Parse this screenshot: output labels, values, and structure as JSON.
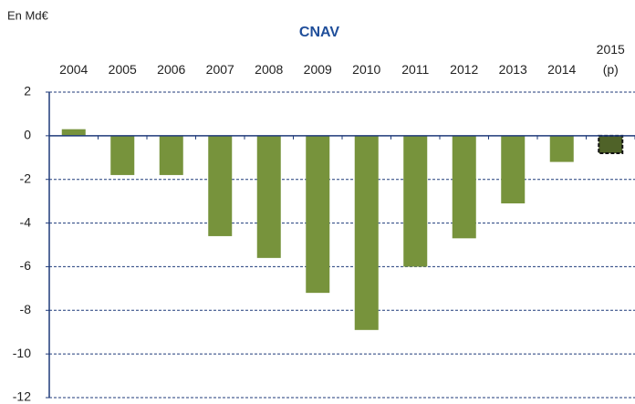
{
  "chart_data": {
    "type": "bar",
    "title": "CNAV",
    "unit_label": "En Md€",
    "categories": [
      "2004",
      "2005",
      "2006",
      "2007",
      "2008",
      "2009",
      "2010",
      "2011",
      "2012",
      "2013",
      "2014",
      "2015\n(p)"
    ],
    "values": [
      0.3,
      -1.8,
      -1.8,
      -4.6,
      -5.6,
      -7.2,
      -8.9,
      -6.0,
      -4.7,
      -3.1,
      -1.2,
      -0.8
    ],
    "colors": [
      "#77933c",
      "#77933c",
      "#77933c",
      "#77933c",
      "#77933c",
      "#77933c",
      "#77933c",
      "#77933c",
      "#77933c",
      "#77933c",
      "#77933c",
      "#4f6228"
    ],
    "ylim": [
      -12,
      2
    ],
    "yticks": [
      2,
      0,
      -2,
      -4,
      -6,
      -8,
      -10,
      -12
    ],
    "grid": true
  }
}
